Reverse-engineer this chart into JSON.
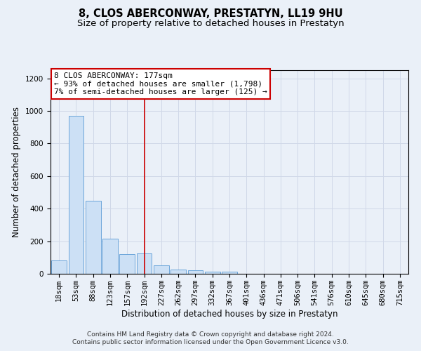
{
  "title": "8, CLOS ABERCONWAY, PRESTATYN, LL19 9HU",
  "subtitle": "Size of property relative to detached houses in Prestatyn",
  "xlabel": "Distribution of detached houses by size in Prestatyn",
  "ylabel": "Number of detached properties",
  "categories": [
    "18sqm",
    "53sqm",
    "88sqm",
    "123sqm",
    "157sqm",
    "192sqm",
    "227sqm",
    "262sqm",
    "297sqm",
    "332sqm",
    "367sqm",
    "401sqm",
    "436sqm",
    "471sqm",
    "506sqm",
    "541sqm",
    "576sqm",
    "610sqm",
    "645sqm",
    "680sqm",
    "715sqm"
  ],
  "values": [
    80,
    970,
    450,
    215,
    120,
    125,
    50,
    25,
    20,
    15,
    12,
    0,
    0,
    0,
    0,
    0,
    0,
    0,
    0,
    0,
    0
  ],
  "bar_color": "#cce0f5",
  "bar_edge_color": "#5b9bd5",
  "grid_color": "#d0d8e8",
  "bg_color": "#eaf0f8",
  "annotation_line1": "8 CLOS ABERCONWAY: 177sqm",
  "annotation_line2": "← 93% of detached houses are smaller (1,798)",
  "annotation_line3": "7% of semi-detached houses are larger (125) →",
  "vline_x": 5.0,
  "vline_color": "#cc0000",
  "annotation_box_color": "#ffffff",
  "annotation_box_edge": "#cc0000",
  "ylim": [
    0,
    1250
  ],
  "yticks": [
    0,
    200,
    400,
    600,
    800,
    1000,
    1200
  ],
  "footer_line1": "Contains HM Land Registry data © Crown copyright and database right 2024.",
  "footer_line2": "Contains public sector information licensed under the Open Government Licence v3.0.",
  "title_fontsize": 10.5,
  "subtitle_fontsize": 9.5,
  "axis_label_fontsize": 8.5,
  "tick_fontsize": 7.5,
  "annotation_fontsize": 8,
  "footer_fontsize": 6.5
}
